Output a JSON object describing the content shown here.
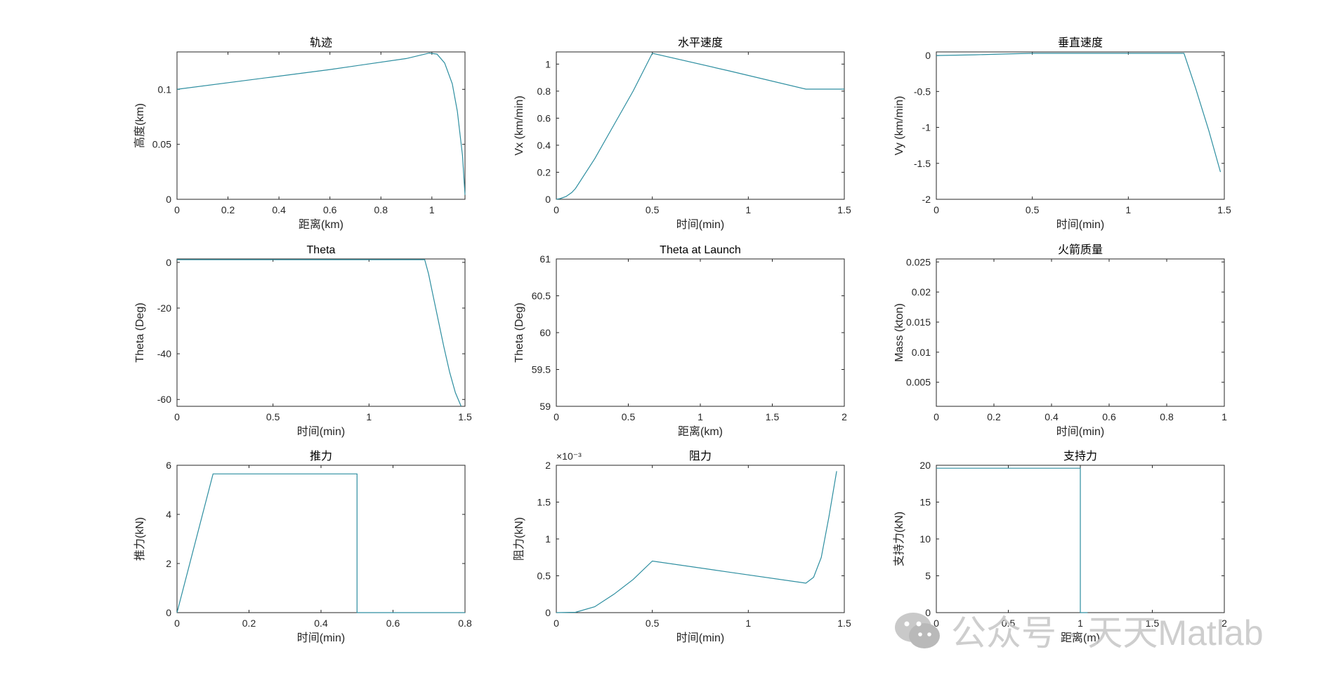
{
  "figure": {
    "background": "#ffffff",
    "line_color": "#2d8ea0",
    "axis_color": "#262626"
  },
  "watermark": {
    "text": "公众号 · 天天Matlab",
    "icon": "wechat-icon"
  },
  "chart_data": [
    {
      "type": "line",
      "title": "轨迹",
      "xlabel": "距离(km)",
      "ylabel": "高度(km)",
      "xlim": [
        0,
        1.13
      ],
      "ylim": [
        0,
        0.134
      ],
      "xticks": [
        0,
        0.2,
        0.4,
        0.6,
        0.8,
        1
      ],
      "xtick_labels": [
        "0",
        "0.2",
        "0.4",
        "0.6",
        "0.8",
        "1"
      ],
      "yticks": [
        0,
        0.05,
        0.1
      ],
      "ytick_labels": [
        "0",
        "0.05",
        "0.1"
      ],
      "exponent_label": "",
      "series": [
        {
          "x": [
            0,
            0.3,
            0.6,
            0.9,
            0.99,
            1.02,
            1.05,
            1.08,
            1.1,
            1.12,
            1.13
          ],
          "y": [
            0.1,
            0.109,
            0.118,
            0.128,
            0.133,
            0.132,
            0.124,
            0.105,
            0.08,
            0.04,
            0.004
          ]
        }
      ]
    },
    {
      "type": "line",
      "title": "水平速度",
      "xlabel": "时间(min)",
      "ylabel": "Vx (km/min)",
      "xlim": [
        0,
        1.5
      ],
      "ylim": [
        0,
        1.09
      ],
      "xticks": [
        0,
        0.5,
        1,
        1.5
      ],
      "xtick_labels": [
        "0",
        "0.5",
        "1",
        "1.5"
      ],
      "yticks": [
        0,
        0.2,
        0.4,
        0.6,
        0.8,
        1
      ],
      "ytick_labels": [
        "0",
        "0.2",
        "0.4",
        "0.6",
        "0.8",
        "1"
      ],
      "exponent_label": "",
      "series": [
        {
          "x": [
            0,
            0.02,
            0.05,
            0.08,
            0.1,
            0.2,
            0.3,
            0.4,
            0.5,
            0.9,
            1.3,
            1.5
          ],
          "y": [
            0,
            0.005,
            0.02,
            0.05,
            0.08,
            0.3,
            0.55,
            0.8,
            1.08,
            0.95,
            0.815,
            0.815
          ]
        }
      ]
    },
    {
      "type": "line",
      "title": "垂直速度",
      "xlabel": "时间(min)",
      "ylabel": "Vy (km/min)",
      "xlim": [
        0,
        1.5
      ],
      "ylim": [
        -2,
        0.05
      ],
      "xticks": [
        0,
        0.5,
        1,
        1.5
      ],
      "xtick_labels": [
        "0",
        "0.5",
        "1",
        "1.5"
      ],
      "yticks": [
        -2,
        -1.5,
        -1,
        -0.5,
        0
      ],
      "ytick_labels": [
        "-2",
        "-1.5",
        "-1",
        "-0.5",
        "0"
      ],
      "exponent_label": "",
      "series": [
        {
          "x": [
            0,
            0.2,
            0.4,
            0.5,
            1.0,
            1.29,
            1.35,
            1.42,
            1.48
          ],
          "y": [
            0.0,
            0.01,
            0.025,
            0.03,
            0.03,
            0.03,
            -0.45,
            -1.05,
            -1.62
          ]
        }
      ]
    },
    {
      "type": "line",
      "title": "Theta",
      "xlabel": "时间(min)",
      "ylabel": "Theta (Deg)",
      "xlim": [
        0,
        1.5
      ],
      "ylim": [
        -63,
        1.5
      ],
      "xticks": [
        0,
        0.5,
        1,
        1.5
      ],
      "xtick_labels": [
        "0",
        "0.5",
        "1",
        "1.5"
      ],
      "yticks": [
        -60,
        -40,
        -20,
        0
      ],
      "ytick_labels": [
        "-60",
        "-40",
        "-20",
        "0"
      ],
      "exponent_label": "",
      "series": [
        {
          "x": [
            0,
            0.5,
            1.0,
            1.29,
            1.31,
            1.33,
            1.36,
            1.39,
            1.42,
            1.45,
            1.48
          ],
          "y": [
            1.2,
            1.2,
            1.2,
            1.2,
            -5,
            -13,
            -25,
            -37,
            -48,
            -57,
            -63
          ]
        }
      ]
    },
    {
      "type": "line",
      "title": "Theta at Launch",
      "xlabel": "距离(km)",
      "ylabel": "Theta (Deg)",
      "xlim": [
        0,
        2
      ],
      "ylim": [
        59,
        61
      ],
      "xticks": [
        0,
        0.5,
        1,
        1.5,
        2
      ],
      "xtick_labels": [
        "0",
        "0.5",
        "1",
        "1.5",
        "2"
      ],
      "yticks": [
        59,
        59.5,
        60,
        60.5,
        61
      ],
      "ytick_labels": [
        "59",
        "59.5",
        "60",
        "60.5",
        "61"
      ],
      "exponent_label": "",
      "series": []
    },
    {
      "type": "line",
      "title": "火箭质量",
      "xlabel": "时间(min)",
      "ylabel": "Mass (kton)",
      "xlim": [
        0,
        1
      ],
      "ylim": [
        0.001,
        0.0255
      ],
      "xticks": [
        0,
        0.2,
        0.4,
        0.6,
        0.8,
        1
      ],
      "xtick_labels": [
        "0",
        "0.2",
        "0.4",
        "0.6",
        "0.8",
        "1"
      ],
      "yticks": [
        0.005,
        0.01,
        0.015,
        0.02,
        0.025
      ],
      "ytick_labels": [
        "0.005",
        "0.01",
        "0.015",
        "0.02",
        "0.025"
      ],
      "exponent_label": "",
      "series": []
    },
    {
      "type": "line",
      "title": "推力",
      "xlabel": "时间(min)",
      "ylabel": "推力(kN)",
      "xlim": [
        0,
        0.8
      ],
      "ylim": [
        0,
        6
      ],
      "xticks": [
        0,
        0.2,
        0.4,
        0.6,
        0.8
      ],
      "xtick_labels": [
        "0",
        "0.2",
        "0.4",
        "0.6",
        "0.8"
      ],
      "yticks": [
        0,
        2,
        4,
        6
      ],
      "ytick_labels": [
        "0",
        "2",
        "4",
        "6"
      ],
      "exponent_label": "",
      "series": [
        {
          "x": [
            0,
            0.1,
            0.5,
            0.5,
            0.8
          ],
          "y": [
            0,
            5.65,
            5.65,
            0,
            0
          ]
        }
      ]
    },
    {
      "type": "line",
      "title": "阻力",
      "xlabel": "时间(min)",
      "ylabel": "阻力(kN)",
      "xlim": [
        0,
        1.5
      ],
      "ylim": [
        0,
        2
      ],
      "xticks": [
        0,
        0.5,
        1,
        1.5
      ],
      "xtick_labels": [
        "0",
        "0.5",
        "1",
        "1.5"
      ],
      "yticks": [
        0,
        0.5,
        1,
        1.5,
        2
      ],
      "ytick_labels": [
        "0",
        "0.5",
        "1",
        "1.5",
        "2"
      ],
      "exponent_label": "×10⁻³",
      "series": [
        {
          "x": [
            0,
            0.1,
            0.2,
            0.3,
            0.4,
            0.5,
            0.9,
            1.3,
            1.34,
            1.38,
            1.42,
            1.46
          ],
          "y": [
            0,
            0.005,
            0.08,
            0.25,
            0.45,
            0.7,
            0.55,
            0.4,
            0.48,
            0.75,
            1.3,
            1.92
          ]
        }
      ]
    },
    {
      "type": "line",
      "title": "支持力",
      "xlabel": "距离(m)",
      "ylabel": "支持力(kN)",
      "xlim": [
        0,
        2
      ],
      "ylim": [
        0,
        20
      ],
      "xticks": [
        0,
        0.5,
        1,
        1.5,
        2
      ],
      "xtick_labels": [
        "0",
        "0.5",
        "1",
        "1.5",
        "2"
      ],
      "yticks": [
        0,
        5,
        10,
        15,
        20
      ],
      "ytick_labels": [
        "0",
        "5",
        "10",
        "15",
        "20"
      ],
      "exponent_label": "",
      "series": [
        {
          "x": [
            0,
            1.0,
            1.0,
            1.05
          ],
          "y": [
            19.6,
            19.6,
            0,
            0
          ]
        }
      ]
    }
  ]
}
